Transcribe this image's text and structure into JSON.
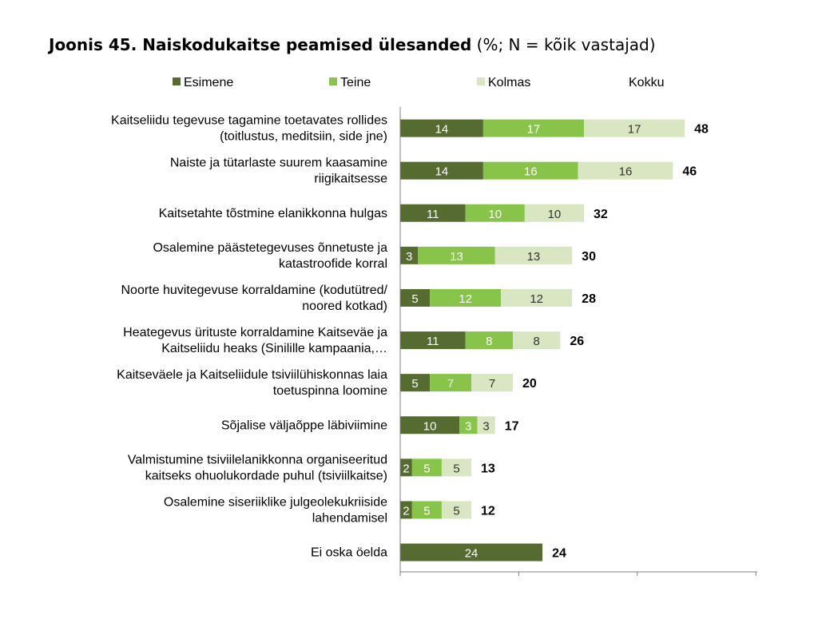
{
  "title": {
    "bold": "Joonis 45. Naiskodukaitse peamised ülesanded",
    "normal": " (%; N = kõik vastajad)"
  },
  "colors": {
    "Esimene": "#556b2f",
    "Teine": "#88c34a",
    "Kolmas": "#d8e6c2",
    "axis": "#808080"
  },
  "chart_data": {
    "type": "bar",
    "orientation": "horizontal",
    "stacked": true,
    "legend_position": "top",
    "categories": [
      [
        "Kaitseliidu tegevuse tagamine toetavates rollides",
        "(toitlustus, meditsiin, side jne)"
      ],
      [
        "Naiste ja tütarlaste suurem kaasamine",
        "riigikaitsesse"
      ],
      [
        "Kaitsetahte tõstmine elanikkonna hulgas"
      ],
      [
        "Osalemine päästetegevuses õnnetuste ja",
        "katastroofide korral"
      ],
      [
        "Noorte huvitegevuse korraldamine (kodutütred/",
        "noored kotkad)"
      ],
      [
        "Heategevus ürituste korraldamine Kaitseväe ja",
        "Kaitseliidu heaks (Sinilille kampaania,…"
      ],
      [
        "Kaitseväele ja Kaitseliidule tsiviilühiskonnas laia",
        "toetuspinna loomine"
      ],
      [
        "Sõjalise väljaõppe läbiviimine"
      ],
      [
        "Valmistumine tsiviilelanikkonna organiseeritud",
        "kaitseks ohuolukordade puhul (tsiviilkaitse)"
      ],
      [
        "Osalemine siseriiklike julgeolekukriiside",
        "lahendamisel"
      ],
      [
        "Ei oska öelda"
      ]
    ],
    "series": [
      {
        "name": "Esimene",
        "values": [
          14,
          14,
          11,
          3,
          5,
          11,
          5,
          10,
          2,
          2,
          24
        ]
      },
      {
        "name": "Teine",
        "values": [
          17,
          16,
          10,
          13,
          12,
          8,
          7,
          3,
          5,
          5,
          0
        ]
      },
      {
        "name": "Kolmas",
        "values": [
          17,
          16,
          10,
          13,
          12,
          8,
          7,
          3,
          5,
          5,
          0
        ]
      }
    ],
    "totals_legend": "Kokku",
    "totals": [
      48,
      46,
      32,
      30,
      28,
      26,
      20,
      17,
      13,
      12,
      24
    ],
    "xlim": [
      0,
      60
    ],
    "grid": false
  }
}
